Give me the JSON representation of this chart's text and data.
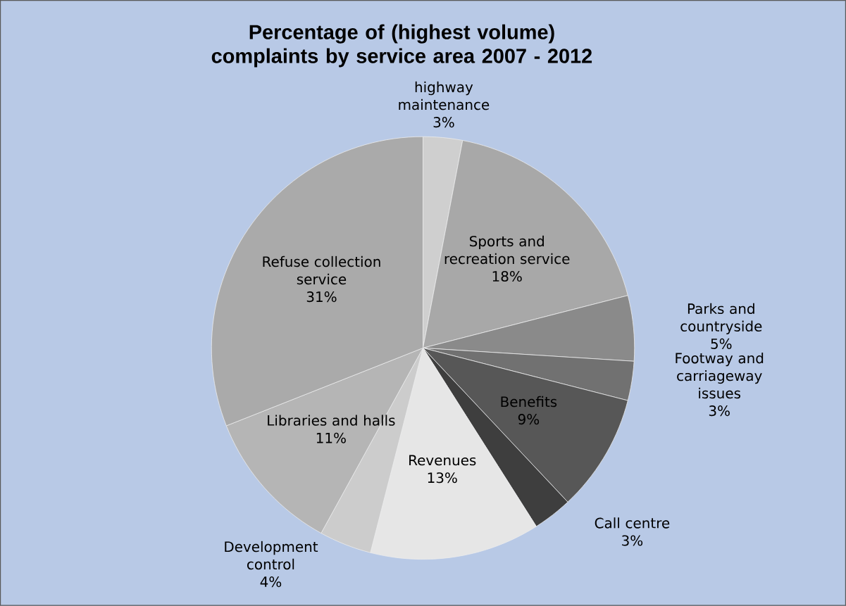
{
  "chart_data": {
    "type": "pie",
    "title": "Percentage of (highest volume) complaints by service area 2007 - 2012",
    "categories": [
      "highway maintenance",
      "Sports and recreation service",
      "Parks and countryside",
      "Footway and carriageway issues",
      "Benefits",
      "Call centre",
      "Revenues",
      "Development control",
      "Libraries and halls",
      "Refuse collection service"
    ],
    "values": [
      3,
      18,
      5,
      3,
      9,
      3,
      13,
      4,
      11,
      31
    ],
    "value_labels": [
      "3%",
      "18%",
      "5%",
      "3%",
      "9%",
      "3%",
      "13%",
      "4%",
      "11%",
      "31%"
    ],
    "colors": [
      "#cfcfcf",
      "#a8a8a8",
      "#8a8a8a",
      "#717171",
      "#575757",
      "#3e3e3e",
      "#e6e6e6",
      "#cccccc",
      "#b5b5b5",
      "#aaaaaa"
    ]
  }
}
